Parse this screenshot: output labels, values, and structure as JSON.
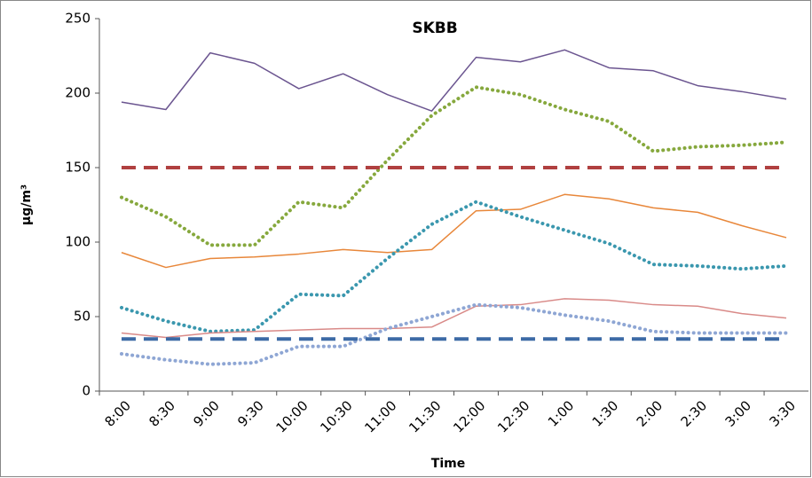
{
  "chart_data": {
    "type": "line",
    "title": "SKBB",
    "x_label": "Time",
    "y_label": "µg/m³",
    "categories": [
      "8:00",
      "8:30",
      "9:00",
      "9:30",
      "10:00",
      "10:30",
      "11:00",
      "11:30",
      "12:00",
      "12:30",
      "1:00",
      "1:30",
      "2:00",
      "2:30",
      "3:00",
      "3:30"
    ],
    "ylim": [
      0,
      250
    ],
    "yticks": [
      0,
      50,
      100,
      150,
      200,
      250
    ],
    "grid": false,
    "series": [
      {
        "color": "#6b5590",
        "style": "solid",
        "width": 1.5,
        "values": [
          194,
          189,
          227,
          220,
          203,
          213,
          199,
          188,
          224,
          221,
          229,
          217,
          215,
          205,
          201,
          196
        ]
      },
      {
        "color": "#86a83d",
        "style": "dotted",
        "width": 4,
        "values": [
          130,
          117,
          98,
          98,
          127,
          123,
          155,
          185,
          204,
          199,
          189,
          181,
          161,
          164,
          165,
          167
        ]
      },
      {
        "color": "#b04040",
        "style": "dashed",
        "width": 4,
        "values": [
          150,
          150,
          150,
          150,
          150,
          150,
          150,
          150,
          150,
          150,
          150,
          150,
          150,
          150,
          150,
          150
        ]
      },
      {
        "color": "#e8873a",
        "style": "solid",
        "width": 1.5,
        "values": [
          93,
          83,
          89,
          90,
          92,
          95,
          93,
          95,
          121,
          122,
          132,
          129,
          123,
          120,
          111,
          103
        ]
      },
      {
        "color": "#3a97ae",
        "style": "dotted",
        "width": 4,
        "values": [
          56,
          47,
          40,
          41,
          65,
          64,
          89,
          112,
          127,
          117,
          108,
          99,
          85,
          84,
          82,
          84
        ]
      },
      {
        "color": "#d98a88",
        "style": "solid",
        "width": 1.5,
        "values": [
          39,
          36,
          39,
          40,
          41,
          42,
          42,
          43,
          57,
          58,
          62,
          61,
          58,
          57,
          52,
          49
        ]
      },
      {
        "color": "#8ea6d4",
        "style": "dotted",
        "width": 4,
        "values": [
          25,
          21,
          18,
          19,
          30,
          30,
          42,
          50,
          58,
          56,
          51,
          47,
          40,
          39,
          39,
          39
        ]
      },
      {
        "color": "#3c6aa6",
        "style": "dashed",
        "width": 4,
        "values": [
          35,
          35,
          35,
          35,
          35,
          35,
          35,
          35,
          35,
          35,
          35,
          35,
          35,
          35,
          35,
          35
        ]
      }
    ]
  }
}
